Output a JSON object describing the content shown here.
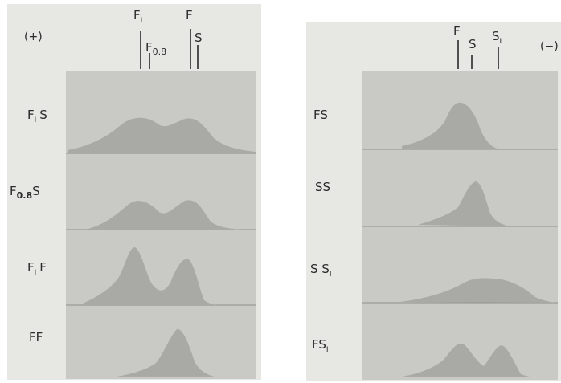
{
  "panel_left": {
    "sign": "(+)",
    "markers": [
      {
        "key": "F1",
        "base": "F",
        "sub": "I"
      },
      {
        "key": "F08",
        "base": "F",
        "sub": "0.8"
      },
      {
        "key": "F",
        "base": "F",
        "sub": ""
      },
      {
        "key": "S",
        "base": "S",
        "sub": ""
      }
    ],
    "rows": [
      {
        "label": "F",
        "sub": "I",
        "label2": "S"
      },
      {
        "label": "F",
        "sub": "0.8",
        "label2": "S"
      },
      {
        "label": "F",
        "sub": "I",
        "label2": "F"
      },
      {
        "label": "FF",
        "sub": "",
        "label2": ""
      }
    ]
  },
  "panel_right": {
    "sign": "(−)",
    "markers": [
      {
        "key": "F",
        "base": "F",
        "sub": ""
      },
      {
        "key": "S",
        "base": "S",
        "sub": ""
      },
      {
        "key": "S1",
        "base": "S",
        "sub": "I"
      }
    ],
    "rows": [
      {
        "label": "FS",
        "sub": "",
        "label2": ""
      },
      {
        "label": "SS",
        "sub": "",
        "label2": ""
      },
      {
        "label": "S S",
        "sub": "I",
        "label2": ""
      },
      {
        "label": "FS",
        "sub": "I",
        "label2": ""
      }
    ]
  },
  "colors": {
    "paper": "#e7e7e4",
    "strip": "#c9c9c6",
    "peak": "#a9a9a6",
    "ink": "#2b2b2b"
  }
}
